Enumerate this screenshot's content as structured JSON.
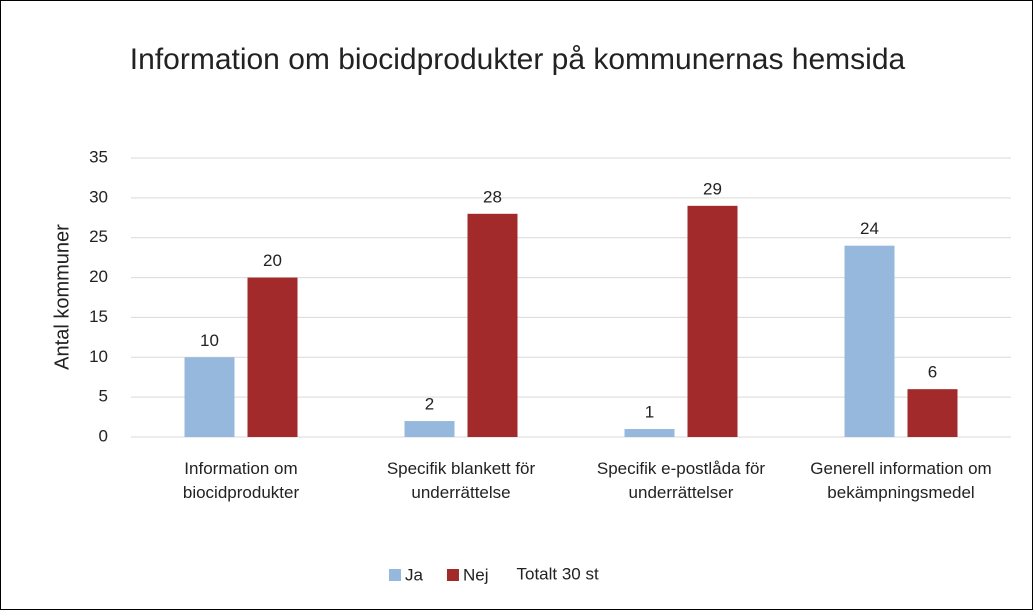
{
  "chart_data": {
    "type": "bar",
    "title": "Information om biocidprodukter på kommunernas hemsida",
    "y_label": "Antal kommuner",
    "annotation": "Totalt 30 st",
    "categories": [
      "Information om biocidprodukter",
      "Specifik blankett för underrättelse",
      "Specifik e-postlåda för underrättelser",
      "Generell information om bekämpningsmedel"
    ],
    "series": [
      {
        "name": "Ja",
        "color": "#95b8dc",
        "values": [
          10,
          2,
          1,
          24
        ]
      },
      {
        "name": "Nej",
        "color": "#a32a2a",
        "values": [
          20,
          28,
          29,
          6
        ]
      }
    ],
    "ylim": [
      0,
      35
    ],
    "yticks": [
      0,
      5,
      10,
      15,
      20,
      25,
      30,
      35
    ],
    "grid": true,
    "legend": "bottom"
  }
}
